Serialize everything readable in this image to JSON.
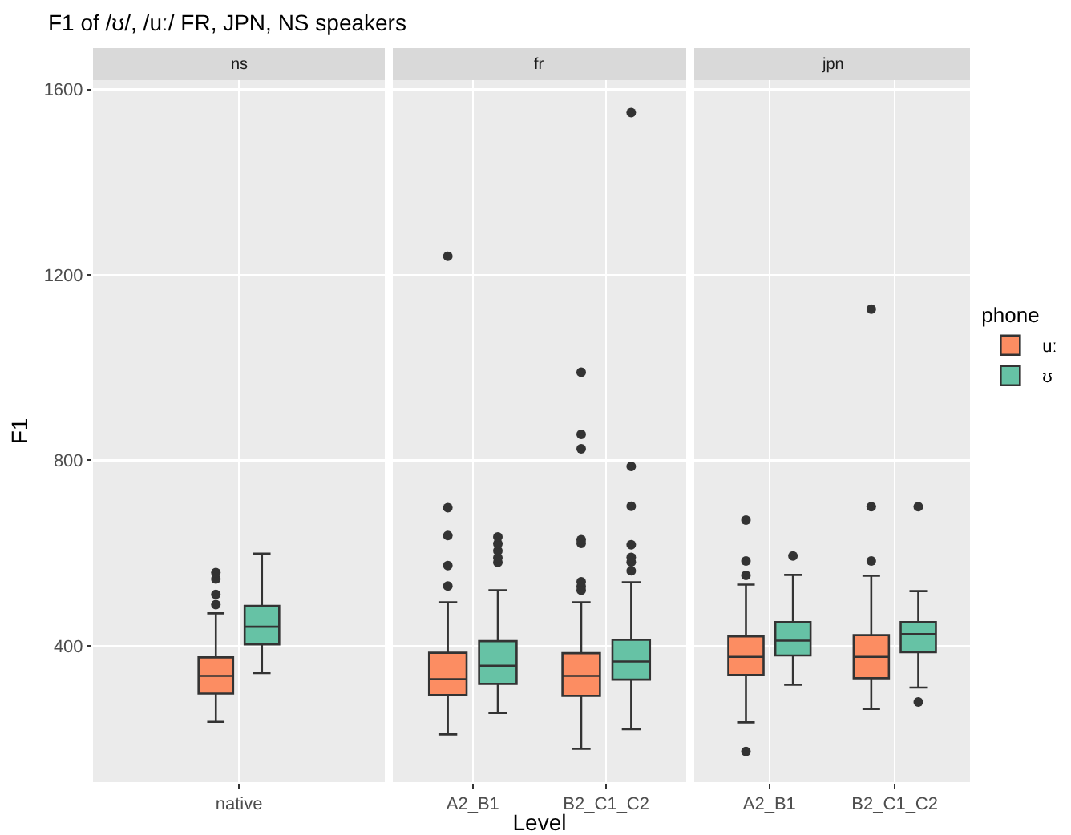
{
  "chart_data": [
    {
      "type": "box",
      "title": "F1 of /ʊ/, /uː/ FR, JPN, NS speakers",
      "subtitle": "ns",
      "ylabel": "F1",
      "categories": [
        "native"
      ],
      "ylim": [
        106,
        1620
      ],
      "yticks": [
        400,
        800,
        1200,
        1600
      ],
      "grid": true,
      "legend": false,
      "series": [
        {
          "color": "#fc8d62",
          "boxes": [
            {
              "low": 236,
              "q1": 297,
              "median": 335,
              "q3": 375,
              "high": 470,
              "outliers": [
                489,
                511,
                544,
                558
              ]
            }
          ]
        },
        {
          "color": "#66c2a5",
          "boxes": [
            {
              "low": 341,
              "q1": 403,
              "median": 441,
              "q3": 486,
              "high": 599
            }
          ]
        }
      ]
    },
    {
      "type": "box",
      "subtitle": "fr",
      "xlabel": "Level",
      "categories": [
        "A2_B1",
        "B2_C1_C2"
      ],
      "ylim": [
        106,
        1620
      ],
      "yticks": [
        400,
        800,
        1200,
        1600
      ],
      "grid": true,
      "legend": false,
      "tick_labels": "x",
      "series": [
        {
          "color": "#fc8d62",
          "boxes": [
            {
              "low": 209,
              "q1": 294,
              "median": 328,
              "q3": 385,
              "high": 494,
              "outliers": [
                529,
                573,
                638,
                698,
                1240
              ]
            },
            {
              "low": 178,
              "q1": 292,
              "median": 335,
              "q3": 384,
              "high": 494,
              "outliers": [
                520,
                528,
                538,
                621,
                629,
                825,
                856,
                990
              ]
            }
          ]
        },
        {
          "color": "#66c2a5",
          "boxes": [
            {
              "low": 255,
              "q1": 318,
              "median": 357,
              "q3": 410,
              "high": 520,
              "outliers": [
                580,
                590,
                605,
                620,
                635
              ]
            },
            {
              "low": 220,
              "q1": 327,
              "median": 366,
              "q3": 413,
              "high": 537,
              "outliers": [
                562,
                581,
                591,
                618,
                701,
                787,
                1550
              ]
            }
          ]
        }
      ]
    },
    {
      "type": "box",
      "subtitle": "jpn",
      "categories": [
        "A2_B1",
        "B2_C1_C2"
      ],
      "ylim": [
        106,
        1620
      ],
      "yticks": [
        400,
        800,
        1200,
        1600
      ],
      "grid": true,
      "legend": "right",
      "legend_title": "phone",
      "tick_labels": "x",
      "series": [
        {
          "name": "uː",
          "color": "#fc8d62",
          "boxes": [
            {
              "low": 235,
              "q1": 337,
              "median": 376,
              "q3": 420,
              "high": 532,
              "outliers": [
                172,
                552,
                583,
                671
              ]
            },
            {
              "low": 264,
              "q1": 330,
              "median": 376,
              "q3": 423,
              "high": 551,
              "outliers": [
                583,
                700,
                1126
              ]
            }
          ]
        },
        {
          "name": "ʊ",
          "color": "#66c2a5",
          "boxes": [
            {
              "low": 316,
              "q1": 379,
              "median": 411,
              "q3": 451,
              "high": 553,
              "outliers": [
                594
              ]
            },
            {
              "low": 310,
              "q1": 386,
              "median": 425,
              "q3": 451,
              "high": 518,
              "outliers": [
                279,
                700
              ]
            }
          ]
        }
      ]
    }
  ]
}
